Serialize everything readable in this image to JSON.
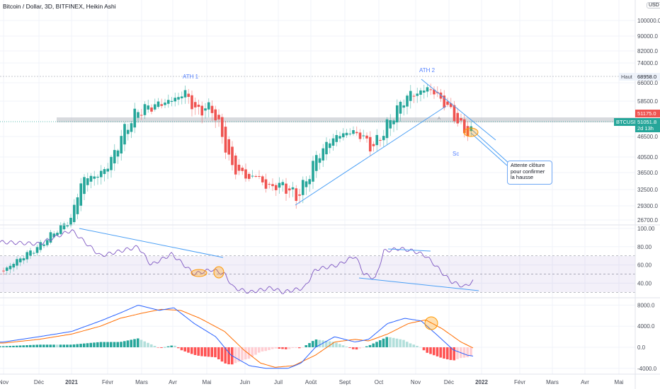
{
  "header": {
    "title": "Bitcoin / Dollar, 3D, BITFINEX, Heikin Ashi",
    "currency_button": "USD"
  },
  "price_axis": {
    "ticks": [
      "100000.0",
      "90000.0",
      "82000.0",
      "74000.0",
      "66000.0",
      "58500.0",
      "46500.0",
      "40500.0",
      "36500.0",
      "32500.0",
      "29300.0",
      "26700.0"
    ],
    "high_label": "Haut",
    "high_value": "68958.0",
    "last_close_value": "51175.0",
    "symbol_label": "BTCUSD",
    "current_value": "51051.8",
    "countdown": "2d 13h"
  },
  "rsi_axis": {
    "ticks": [
      "100.00",
      "80.00",
      "60.00",
      "40.00"
    ]
  },
  "macd_axis": {
    "ticks": [
      "8000.0",
      "4000.0",
      "0.0",
      "-4000.0"
    ]
  },
  "time_axis": {
    "labels": [
      "Nov",
      "Déc",
      "2021",
      "Févr",
      "Mars",
      "Avr",
      "Mai",
      "Juin",
      "Juil",
      "Août",
      "Sept",
      "Oct",
      "Nov",
      "Déc",
      "2022",
      "Févr",
      "Mars",
      "Avr",
      "Mai"
    ]
  },
  "annotations": {
    "ath1": "ATH 1",
    "ath2": "ATH 2",
    "sc": "Sc",
    "a": "A",
    "callout": "Attente clôture pour confirmer la hausse"
  },
  "colors": {
    "up": "#26a69a",
    "down": "#ef5350",
    "rsi": "#7e57c2",
    "macd": "#2962ff",
    "signal": "#ff6d00",
    "trend": "#4a9ff5"
  },
  "chart_data": {
    "type": "line",
    "title": "Bitcoin / Dollar, 3D, BITFINEX, Heikin Ashi",
    "price_close_anchors": [
      [
        "2020-11",
        14000
      ],
      [
        "2020-12",
        19000
      ],
      [
        "2021-01",
        27000
      ],
      [
        "2021-01-10",
        35000
      ],
      [
        "2021-01-25",
        36000
      ],
      [
        "2021-02-05",
        40000
      ],
      [
        "2021-02-15",
        48000
      ],
      [
        "2021-02-28",
        55000
      ],
      [
        "2021-03-15",
        57000
      ],
      [
        "2021-04-01",
        59000
      ],
      [
        "2021-04-13",
        62000
      ],
      [
        "2021-04-20",
        55000
      ],
      [
        "2021-05-05",
        56000
      ],
      [
        "2021-05-12",
        48000
      ],
      [
        "2021-05-20",
        38000
      ],
      [
        "2021-06-05",
        35000
      ],
      [
        "2021-06-12",
        36000
      ],
      [
        "2021-06-20",
        33000
      ],
      [
        "2021-07-05",
        33500
      ],
      [
        "2021-07-18",
        31000
      ],
      [
        "2021-07-28",
        35000
      ],
      [
        "2021-08-05",
        40000
      ],
      [
        "2021-08-20",
        46000
      ],
      [
        "2021-09-05",
        48000
      ],
      [
        "2021-09-15",
        47000
      ],
      [
        "2021-09-25",
        43000
      ],
      [
        "2021-10-05",
        48000
      ],
      [
        "2021-10-15",
        55000
      ],
      [
        "2021-10-25",
        61000
      ],
      [
        "2021-11-05",
        62000
      ],
      [
        "2021-11-12",
        64000
      ],
      [
        "2021-11-20",
        61000
      ],
      [
        "2021-11-28",
        57000
      ],
      [
        "2021-12-05",
        54000
      ],
      [
        "2021-12-10",
        50000
      ],
      [
        "2021-12-20",
        47500
      ],
      [
        "2021-12-24",
        48000
      ],
      [
        "2021-12-27",
        51051.8
      ]
    ],
    "rsi_anchors": [
      [
        "2020-11",
        85
      ],
      [
        "2020-12",
        83
      ],
      [
        "2021-01",
        98
      ],
      [
        "2021-01-25",
        70
      ],
      [
        "2021-02-28",
        80
      ],
      [
        "2021-03-10",
        60
      ],
      [
        "2021-03-30",
        72
      ],
      [
        "2021-04-20",
        50
      ],
      [
        "2021-05-05",
        55
      ],
      [
        "2021-05-15",
        50
      ],
      [
        "2021-05-22",
        35
      ],
      [
        "2021-06-05",
        30
      ],
      [
        "2021-06-25",
        35
      ],
      [
        "2021-07-05",
        30
      ],
      [
        "2021-07-25",
        35
      ],
      [
        "2021-08-05",
        55
      ],
      [
        "2021-08-25",
        60
      ],
      [
        "2021-09-10",
        70
      ],
      [
        "2021-09-18",
        50
      ],
      [
        "2021-09-28",
        45
      ],
      [
        "2021-10-05",
        75
      ],
      [
        "2021-10-18",
        78
      ],
      [
        "2021-10-30",
        75
      ],
      [
        "2021-11-10",
        70
      ],
      [
        "2021-11-20",
        58
      ],
      [
        "2021-11-26",
        50
      ],
      [
        "2021-12-03",
        42
      ],
      [
        "2021-12-15",
        36
      ],
      [
        "2021-12-27",
        45
      ]
    ],
    "macd_anchors": [
      [
        "2020-11",
        1000
      ],
      [
        "2020-12",
        2000
      ],
      [
        "2021-01",
        3000
      ],
      [
        "2021-01-25",
        5000
      ],
      [
        "2021-02-12",
        6500
      ],
      [
        "2021-02-28",
        8000
      ],
      [
        "2021-03-18",
        7000
      ],
      [
        "2021-04-02",
        7500
      ],
      [
        "2021-04-20",
        4500
      ],
      [
        "2021-05-08",
        2000
      ],
      [
        "2021-05-20",
        -1500
      ],
      [
        "2021-06-05",
        -3500
      ],
      [
        "2021-06-20",
        -4000
      ],
      [
        "2021-07-10",
        -4000
      ],
      [
        "2021-07-22",
        -3000
      ],
      [
        "2021-08-05",
        0
      ],
      [
        "2021-08-22",
        2000
      ],
      [
        "2021-09-10",
        1000
      ],
      [
        "2021-09-22",
        1500
      ],
      [
        "2021-10-08",
        4500
      ],
      [
        "2021-10-22",
        5500
      ],
      [
        "2021-11-06",
        5000
      ],
      [
        "2021-11-22",
        2000
      ],
      [
        "2021-12-05",
        -500
      ],
      [
        "2021-12-18",
        -1500
      ],
      [
        "2021-12-27",
        -1800
      ]
    ],
    "signal_anchors": [
      [
        "2020-11",
        800
      ],
      [
        "2020-12",
        1500
      ],
      [
        "2021-01",
        2500
      ],
      [
        "2021-01-25",
        4000
      ],
      [
        "2021-02-12",
        5500
      ],
      [
        "2021-03-02",
        6500
      ],
      [
        "2021-03-20",
        7200
      ],
      [
        "2021-04-08",
        7000
      ],
      [
        "2021-04-25",
        5500
      ],
      [
        "2021-05-15",
        3000
      ],
      [
        "2021-05-30",
        -500
      ],
      [
        "2021-06-15",
        -3000
      ],
      [
        "2021-06-28",
        -3800
      ],
      [
        "2021-07-15",
        -3500
      ],
      [
        "2021-08-05",
        -1500
      ],
      [
        "2021-08-22",
        1000
      ],
      [
        "2021-09-10",
        1500
      ],
      [
        "2021-09-22",
        1200
      ],
      [
        "2021-10-08",
        2500
      ],
      [
        "2021-10-25",
        4500
      ],
      [
        "2021-11-10",
        5200
      ],
      [
        "2021-11-25",
        3500
      ],
      [
        "2021-12-12",
        1000
      ],
      [
        "2021-12-27",
        -500
      ]
    ],
    "rsi_levels": [
      70,
      50,
      30
    ],
    "ylim_price": [
      26700,
      110000
    ],
    "ylim_rsi": [
      25,
      100
    ],
    "ylim_macd": [
      -4500,
      9000
    ],
    "grid": true
  }
}
